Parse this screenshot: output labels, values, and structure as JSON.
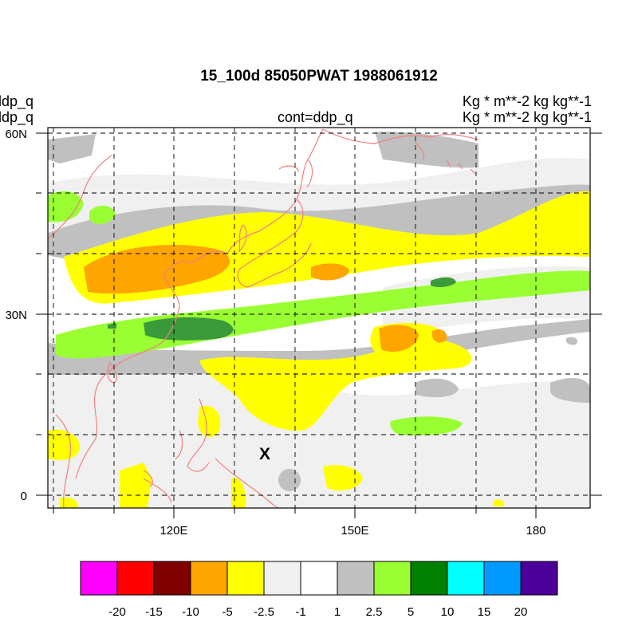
{
  "header": {
    "title": "15_100d 85050PWAT  1988061912",
    "left_line1": "ddp_q",
    "left_line2": "ddp_q",
    "center_line": "cont=ddp_q",
    "right_line1": "Kg  * m**-2 kg kg**-1",
    "right_line2": "Kg  * m**-2 kg kg**-1"
  },
  "map": {
    "lat_labels": [
      "60N",
      "30N",
      "0"
    ],
    "lon_labels": [
      "120E",
      "150E",
      "180"
    ],
    "marker": "X",
    "coastline_color": "#f08080"
  },
  "colorbar": {
    "colors": [
      "#ff00ff",
      "#ff0000",
      "#800000",
      "#ffa500",
      "#ffff00",
      "#f0f0f0",
      "#ffffff",
      "#c0c0c0",
      "#99ff33",
      "#008000",
      "#00ffff",
      "#0099ff",
      "#4b0099"
    ],
    "labels": [
      "-20",
      "-15",
      "-10",
      "-5",
      "-2.5",
      "-1",
      "1",
      "2.5",
      "5",
      "10",
      "15",
      "20"
    ]
  }
}
